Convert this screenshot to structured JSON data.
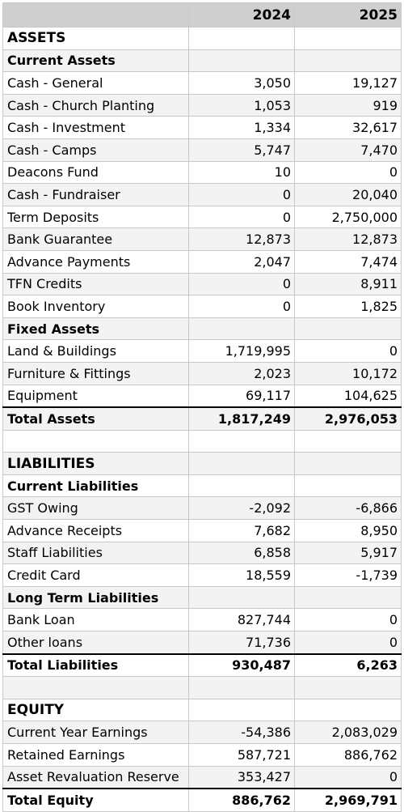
{
  "table": {
    "header": [
      "2024",
      "2025"
    ],
    "sections": [
      {
        "title": "ASSETS",
        "groups": [
          {
            "title": "Current Assets",
            "rows": [
              [
                "Cash - General",
                "3,050",
                "19,127"
              ],
              [
                "Cash - Church Planting",
                "1,053",
                "919"
              ],
              [
                "Cash - Investment",
                "1,334",
                "32,617"
              ],
              [
                "Cash - Camps",
                "5,747",
                "7,470"
              ],
              [
                "Deacons Fund",
                "10",
                "0"
              ],
              [
                "Cash - Fundraiser",
                "0",
                "20,040"
              ],
              [
                "Term Deposits",
                "0",
                "2,750,000"
              ],
              [
                "Bank Guarantee",
                "12,873",
                "12,873"
              ],
              [
                "Advance Payments",
                "2,047",
                "7,474"
              ],
              [
                "TFN Credits",
                "0",
                "8,911"
              ],
              [
                "Book Inventory",
                "0",
                "1,825"
              ]
            ]
          },
          {
            "title": "Fixed Assets",
            "rows": [
              [
                "Land & Buildings",
                "1,719,995",
                "0"
              ],
              [
                "Furniture & Fittings",
                "2,023",
                "10,172"
              ],
              [
                "Equipment",
                "69,117",
                "104,625"
              ]
            ]
          }
        ],
        "total": [
          "Total Assets",
          "1,817,249",
          "2,976,053"
        ]
      },
      {
        "title": "LIABILITIES",
        "groups": [
          {
            "title": "Current Liabilities",
            "rows": [
              [
                "GST Owing",
                "-2,092",
                "-6,866"
              ],
              [
                "Advance Receipts",
                "7,682",
                "8,950"
              ],
              [
                "Staff Liabilities",
                "6,858",
                "5,917"
              ],
              [
                "Credit Card",
                "18,559",
                "-1,739"
              ]
            ]
          },
          {
            "title": "Long Term Liabilities",
            "rows": [
              [
                "Bank Loan",
                "827,744",
                "0"
              ],
              [
                "Other loans",
                "71,736",
                "0"
              ]
            ]
          }
        ],
        "total": [
          "Total Liabilities",
          "930,487",
          "6,263"
        ]
      },
      {
        "title": "EQUITY",
        "groups": [
          {
            "rows": [
              [
                "Current Year Earnings",
                "-54,386",
                "2,083,029"
              ],
              [
                "Retained Earnings",
                "587,721",
                "886,762"
              ],
              [
                "Asset Revaluation Reserve",
                "353,427",
                "0"
              ]
            ]
          }
        ],
        "total": [
          "Total Equity",
          "886,762",
          "2,969,791"
        ]
      }
    ]
  }
}
